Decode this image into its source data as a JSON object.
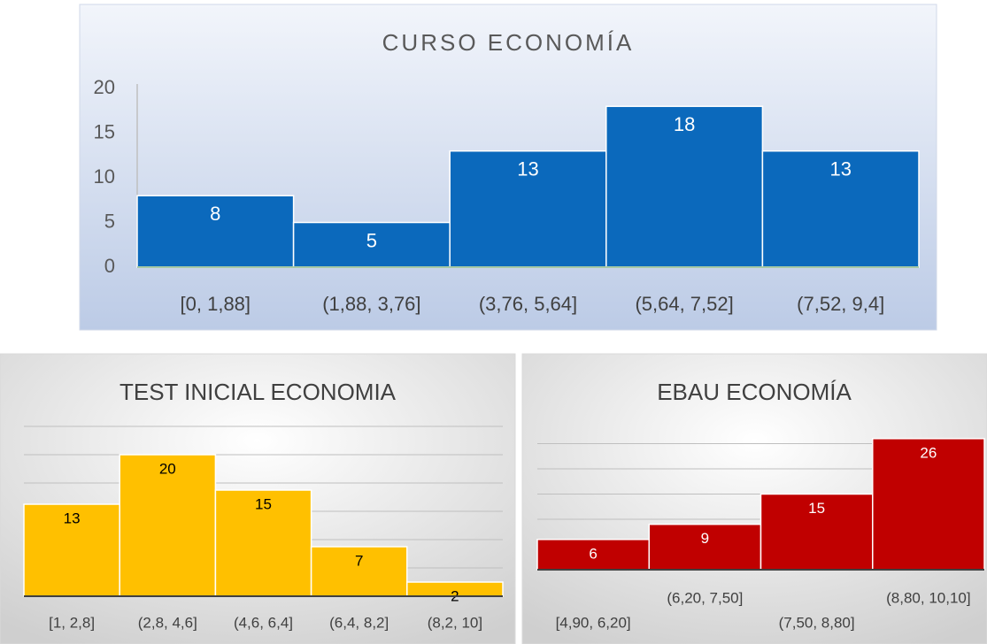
{
  "chart_data": [
    {
      "type": "bar",
      "title": "CURSO ECONOMÍA",
      "categories": [
        "[0, 1,88]",
        "(1,88, 3,76]",
        "(3,76, 5,64]",
        "(5,64, 7,52]",
        "(7,52, 9,4]"
      ],
      "values": [
        8,
        5,
        13,
        18,
        13
      ],
      "color": "#0b69bc",
      "label_color": "#ffffff",
      "ylim": [
        0,
        20
      ],
      "yticks": [
        0,
        5,
        10,
        15,
        20
      ],
      "ytick_labels": true,
      "grid": false
    },
    {
      "type": "bar",
      "title": "TEST INICIAL ECONOMIA",
      "categories": [
        "[1, 2,8]",
        "(2,8, 4,6]",
        "(4,6, 6,4]",
        "(6,4, 8,2]",
        "(8,2, 10]"
      ],
      "values": [
        13,
        20,
        15,
        7,
        2
      ],
      "color": "#ffc000",
      "label_color": "#000000",
      "ylim": [
        0,
        24
      ],
      "yticks": [
        0,
        4,
        8,
        12,
        16,
        20,
        24
      ],
      "ytick_labels": false,
      "grid": true
    },
    {
      "type": "bar",
      "title": "EBAU ECONOMÍA",
      "categories": [
        "[4,90, 6,20]",
        "(6,20, 7,50]",
        "(7,50, 8,80]",
        "(8,80, 10,10]"
      ],
      "values": [
        6,
        9,
        15,
        26
      ],
      "color": "#c00000",
      "label_color": "#ffffff",
      "ylim": [
        0,
        30
      ],
      "yticks": [
        0,
        5,
        10,
        15,
        20,
        25
      ],
      "ytick_labels": false,
      "grid": true
    }
  ]
}
